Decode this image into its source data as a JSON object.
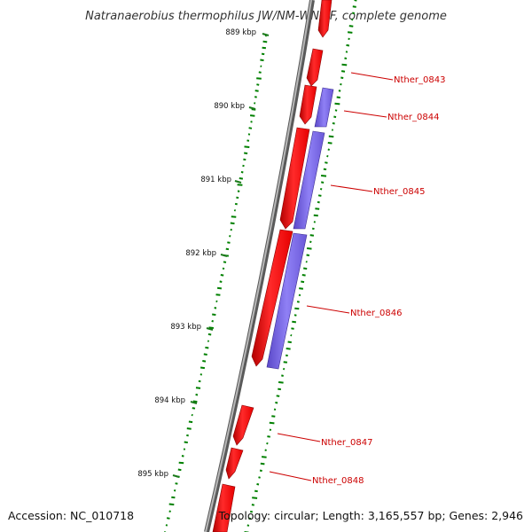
{
  "title": "Natranaerobius thermophilus JW/NM-WN-LF, complete genome",
  "footer": {
    "accession": "Accession: NC_010718",
    "summary": "Topology: circular; Length: 3,165,557 bp; Genes: 2,946"
  },
  "colors": {
    "backbone": "#808080",
    "forward_gene": "#ff0000",
    "reverse_gene": "#7b68ee",
    "gc_ticks": "#008000",
    "label": "#cc0000"
  },
  "tick_labels": [
    "889 kbp",
    "890 kbp",
    "891 kbp",
    "892 kbp",
    "893 kbp",
    "894 kbp",
    "895 kbp"
  ],
  "gene_labels": [
    "Nther_0843",
    "Nther_0844",
    "Nther_0845",
    "Nther_0846",
    "Nther_0847",
    "Nther_0848"
  ]
}
